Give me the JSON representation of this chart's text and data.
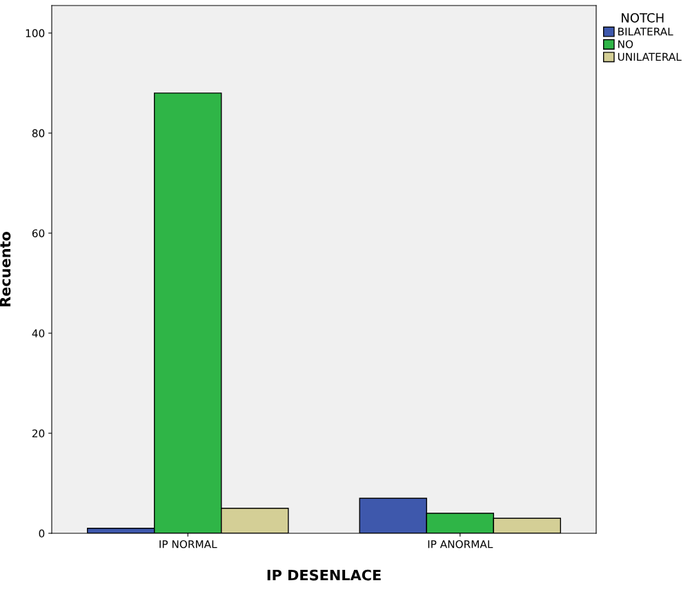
{
  "chart_data": {
    "type": "bar",
    "xlabel": "IP DESENLACE",
    "ylabel": "Recuento",
    "legend_title": "NOTCH",
    "categories": [
      "IP NORMAL",
      "IP ANORMAL"
    ],
    "series": [
      {
        "name": "BILATERAL",
        "color": "#3e58ac",
        "values": [
          1,
          7
        ]
      },
      {
        "name": "NO",
        "color": "#2fb547",
        "values": [
          88,
          4
        ]
      },
      {
        "name": "UNILATERAL",
        "color": "#d4cf96",
        "values": [
          5,
          3
        ]
      }
    ],
    "ylim": [
      0,
      105.5
    ],
    "yticks": [
      0,
      20,
      40,
      60,
      80,
      100
    ],
    "grid": false,
    "legend": "top right"
  }
}
